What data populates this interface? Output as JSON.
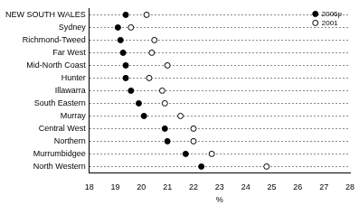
{
  "chart_data": {
    "type": "dot",
    "orientation": "horizontal",
    "categories": [
      "NEW SOUTH WALES",
      "Sydney",
      "Richmond-Tweed",
      "Far West",
      "Mid-North Coast",
      "Hunter",
      "Illawarra",
      "South Eastern",
      "Murray",
      "Central West",
      "Northern",
      "Murrumbidgee",
      "North Western"
    ],
    "series": [
      {
        "name": "2006p",
        "color": "#000000",
        "marker": "circle",
        "values": [
          19.4,
          19.1,
          19.2,
          19.3,
          19.4,
          19.4,
          19.6,
          19.9,
          20.1,
          20.9,
          21.0,
          21.7,
          22.3
        ]
      },
      {
        "name": "2001",
        "color": "#000000",
        "marker": "open_circle",
        "values": [
          20.2,
          19.6,
          20.5,
          20.4,
          21.0,
          20.3,
          20.8,
          20.9,
          21.5,
          22.0,
          22.0,
          22.7,
          24.8
        ]
      }
    ],
    "x_label": "%",
    "xlim": [
      18,
      28
    ],
    "xticks": [
      18,
      19,
      20,
      21,
      22,
      23,
      24,
      25,
      26,
      27,
      28
    ],
    "grid": true,
    "legend": "top-right"
  }
}
